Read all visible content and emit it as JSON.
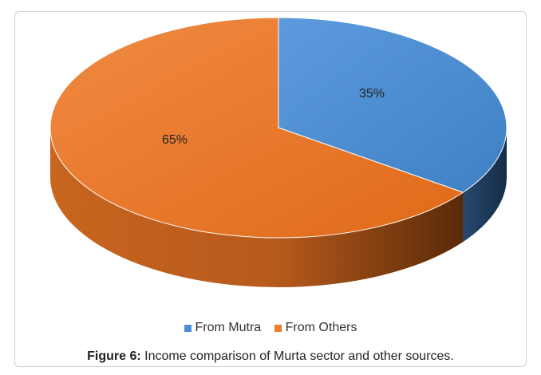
{
  "chart_data": {
    "type": "pie",
    "style": "3d",
    "categories": [
      "From Mutra",
      "From Others"
    ],
    "values": [
      35,
      65
    ],
    "data_labels": [
      "35%",
      "65%"
    ],
    "colors": [
      "#4e8fd3",
      "#ed7d31"
    ],
    "side_colors": [
      "#1f3a5c",
      "#a9531a"
    ],
    "legend_position": "bottom"
  },
  "caption": {
    "label": "Figure 6:",
    "text": "Income comparison of Murta sector and other sources."
  }
}
